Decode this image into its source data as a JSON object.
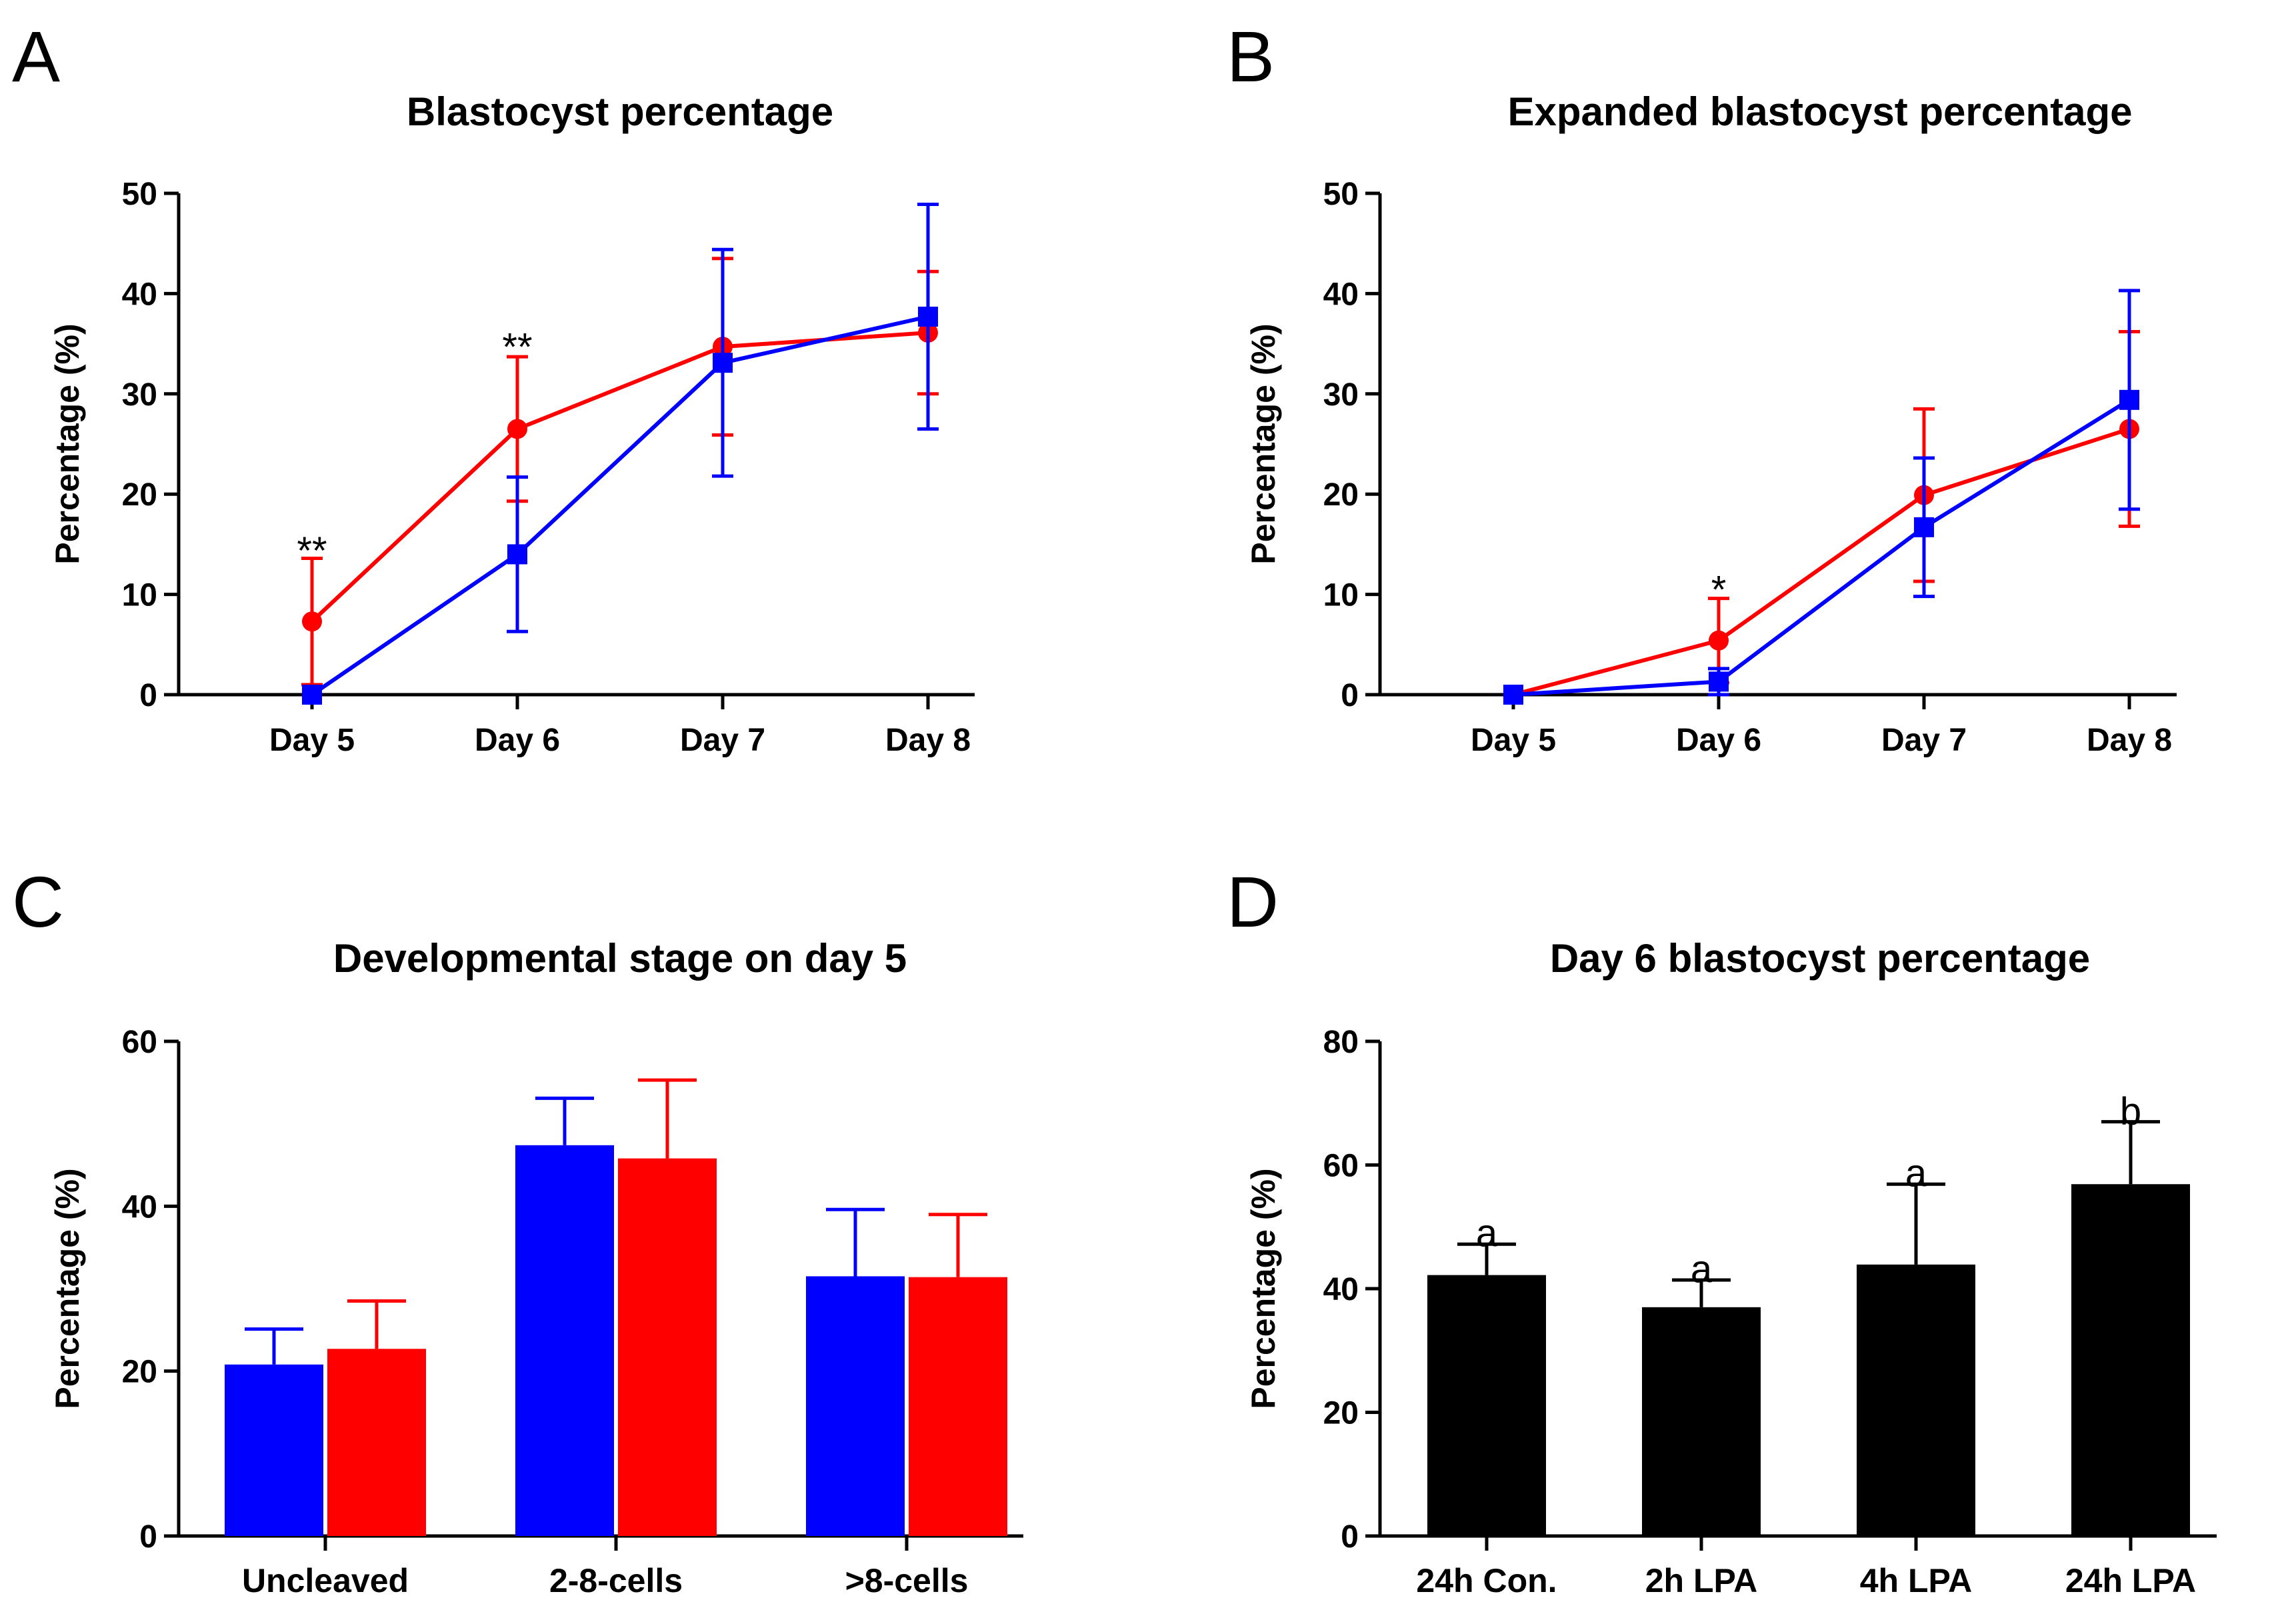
{
  "colors": {
    "blue": "#0000ff",
    "red": "#ff0000",
    "black": "#000000"
  },
  "chart_data": [
    {
      "panel": "A",
      "type": "line",
      "title": "Blastocyst percentage",
      "xlabel": "",
      "ylabel": "Percentage (%)",
      "ylim": [
        0,
        50
      ],
      "yticks": [
        0,
        10,
        20,
        30,
        40,
        50
      ],
      "categories": [
        "Day 5",
        "Day 6",
        "Day 7",
        "Day 8"
      ],
      "series": [
        {
          "name": "red series",
          "color": "#ff0000",
          "marker": "circle",
          "values": [
            7.3,
            26.5,
            34.7,
            36.1
          ],
          "err": [
            6.3,
            7.2,
            8.8,
            6.1
          ]
        },
        {
          "name": "blue series",
          "color": "#0000ff",
          "marker": "square",
          "values": [
            0,
            14.0,
            33.1,
            37.7
          ],
          "err": [
            0,
            7.7,
            11.3,
            11.2
          ]
        }
      ],
      "annotations": [
        {
          "category": "Day 5",
          "value": 14.5,
          "text": "**"
        },
        {
          "category": "Day 6",
          "value": 34.8,
          "text": "**"
        }
      ]
    },
    {
      "panel": "B",
      "type": "line",
      "title": "Expanded blastocyst percentage",
      "xlabel": "",
      "ylabel": "Percentage (%)",
      "ylim": [
        0,
        50
      ],
      "yticks": [
        0,
        10,
        20,
        30,
        40,
        50
      ],
      "categories": [
        "Day 5",
        "Day 6",
        "Day 7",
        "Day 8"
      ],
      "series": [
        {
          "name": "red series",
          "color": "#ff0000",
          "marker": "circle",
          "values": [
            0,
            5.4,
            19.9,
            26.5
          ],
          "err": [
            0,
            4.2,
            8.6,
            9.7
          ]
        },
        {
          "name": "blue series",
          "color": "#0000ff",
          "marker": "square",
          "values": [
            0,
            1.3,
            16.7,
            29.4
          ],
          "err": [
            0,
            1.3,
            6.9,
            10.9
          ]
        }
      ],
      "annotations": [
        {
          "category": "Day 6",
          "value": 10.6,
          "text": "*"
        }
      ]
    },
    {
      "panel": "C",
      "type": "bar",
      "title": "Developmental stage on day 5",
      "xlabel": "",
      "ylabel": "Percentage (%)",
      "ylim": [
        0,
        60
      ],
      "yticks": [
        0,
        20,
        40,
        60
      ],
      "categories": [
        "Uncleaved",
        "2-8-cells",
        ">8-cells"
      ],
      "series": [
        {
          "name": "blue series",
          "color": "#0000ff",
          "values": [
            20.8,
            47.4,
            31.5
          ],
          "err": [
            4.3,
            5.7,
            8.1
          ]
        },
        {
          "name": "red series",
          "color": "#ff0000",
          "values": [
            22.7,
            45.8,
            31.4
          ],
          "err": [
            5.8,
            9.5,
            7.6
          ]
        }
      ],
      "annotations": []
    },
    {
      "panel": "D",
      "type": "bar",
      "title": "Day 6 blastocyst percentage",
      "xlabel": "",
      "ylabel": "Percentage (%)",
      "ylim": [
        0,
        80
      ],
      "yticks": [
        0,
        20,
        40,
        60,
        80
      ],
      "categories": [
        "24h Con.",
        "2h LPA",
        "4h LPA",
        "24h LPA"
      ],
      "series": [
        {
          "name": "black series",
          "color": "#000000",
          "values": [
            42.2,
            37.0,
            43.9,
            56.9
          ],
          "err": [
            5.0,
            4.4,
            13.0,
            10.1
          ]
        }
      ],
      "annotations": [
        {
          "category": "24h Con.",
          "value": 49.2,
          "text": "a"
        },
        {
          "category": "2h LPA",
          "value": 43.4,
          "text": "a"
        },
        {
          "category": "4h LPA",
          "value": 58.9,
          "text": "a"
        },
        {
          "category": "24h LPA",
          "value": 68.9,
          "text": "b"
        }
      ]
    }
  ]
}
